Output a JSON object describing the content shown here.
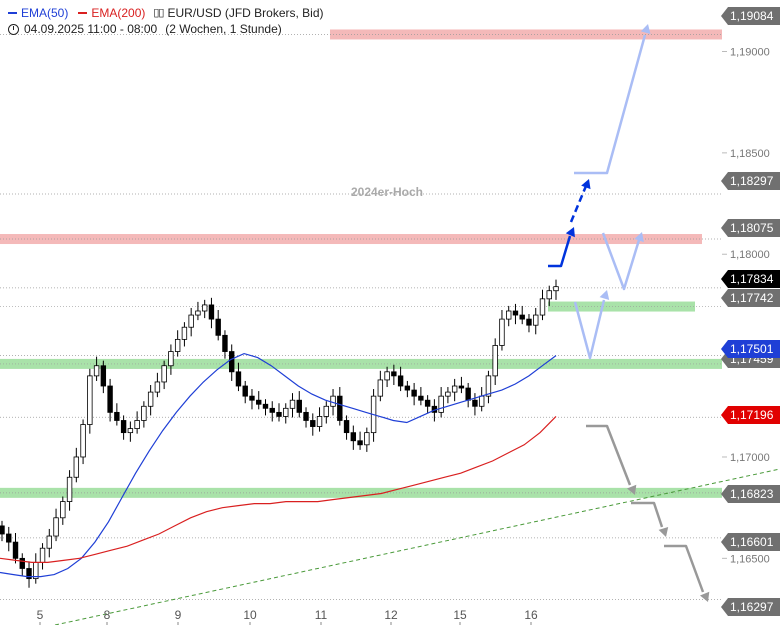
{
  "legend": {
    "ema50_label": "EMA(50)",
    "ema200_label": "EMA(200)",
    "instrument": "EUR/USD (JFD Brokers, Bid)",
    "timeframe": "04.09.2025 11:00 - 08:00",
    "period": "(2 Wochen, 1 Stunde)"
  },
  "colors": {
    "ema50": "#1f3fd6",
    "ema200": "#d92020",
    "resistance_zone": "#f4b9b9",
    "support_zone": "#a9e2a9",
    "projection_up": "#0033dd",
    "projection_light": "#aabdf5",
    "projection_down": "#999999",
    "trendline": "#4a9a3a"
  },
  "chart_data": {
    "type": "candlestick",
    "y_axis_ticks": [
      "1,19000",
      "1,18500",
      "1,18000",
      "1,17000",
      "1,16500"
    ],
    "x_axis_ticks": [
      "5",
      "8",
      "9",
      "10",
      "11",
      "12",
      "15",
      "16"
    ],
    "price_tags": [
      {
        "label": "1,19084",
        "style": "grey"
      },
      {
        "label": "1,18297",
        "style": "grey"
      },
      {
        "label": "1,18075",
        "style": "grey"
      },
      {
        "label": "1,17834",
        "style": "black"
      },
      {
        "label": "1,17742",
        "style": "grey"
      },
      {
        "label": "1,17501",
        "style": "blue"
      },
      {
        "label": "1,17459",
        "style": "grey"
      },
      {
        "label": "1,17196",
        "style": "red"
      },
      {
        "label": "1,16823",
        "style": "grey"
      },
      {
        "label": "1,16601",
        "style": "grey"
      },
      {
        "label": "1,16297",
        "style": "grey"
      }
    ],
    "annotations": [
      "2024er-Hoch"
    ],
    "resistance_zones": [
      1.19084,
      1.18075
    ],
    "support_zones": [
      1.17742,
      1.17459,
      1.16823
    ],
    "ylim": [
      1.1626,
      1.1918
    ],
    "closes": [
      1.1662,
      1.1658,
      1.165,
      1.1645,
      1.164,
      1.1648,
      1.1655,
      1.1661,
      1.167,
      1.1678,
      1.169,
      1.17,
      1.1716,
      1.174,
      1.1745,
      1.1735,
      1.1722,
      1.1718,
      1.1712,
      1.1714,
      1.1718,
      1.1725,
      1.1732,
      1.1737,
      1.1745,
      1.1752,
      1.1758,
      1.1764,
      1.177,
      1.1772,
      1.1775,
      1.1768,
      1.176,
      1.1752,
      1.1742,
      1.1735,
      1.173,
      1.1728,
      1.1726,
      1.1724,
      1.1722,
      1.172,
      1.1724,
      1.1728,
      1.1722,
      1.1718,
      1.1715,
      1.172,
      1.1725,
      1.173,
      1.1718,
      1.1712,
      1.1708,
      1.1706,
      1.1712,
      1.173,
      1.1738,
      1.1742,
      1.174,
      1.1735,
      1.1733,
      1.173,
      1.1728,
      1.1725,
      1.1722,
      1.173,
      1.1732,
      1.1735,
      1.1734,
      1.1728,
      1.1725,
      1.173,
      1.174,
      1.1755,
      1.1768,
      1.1772,
      1.177,
      1.1768,
      1.1765,
      1.177,
      1.1778,
      1.1782,
      1.1784
    ],
    "ema50": [
      1.1643,
      1.1642,
      1.1641,
      1.1641,
      1.1642,
      1.1645,
      1.165,
      1.1658,
      1.1668,
      1.168,
      1.1692,
      1.1703,
      1.1713,
      1.1722,
      1.173,
      1.1737,
      1.1743,
      1.1748,
      1.1751,
      1.1749,
      1.1745,
      1.174,
      1.1735,
      1.1731,
      1.1728,
      1.1726,
      1.1724,
      1.1722,
      1.172,
      1.1718,
      1.1717,
      1.172,
      1.1723,
      1.1725,
      1.1727,
      1.1729,
      1.1731,
      1.1733,
      1.1736,
      1.174,
      1.1745,
      1.175
    ],
    "ema200": [
      1.165,
      1.1649,
      1.1648,
      1.1648,
      1.1649,
      1.165,
      1.1652,
      1.1654,
      1.1656,
      1.1659,
      1.1662,
      1.1666,
      1.167,
      1.1673,
      1.1675,
      1.1676,
      1.1677,
      1.1677,
      1.1678,
      1.1678,
      1.1678,
      1.1679,
      1.168,
      1.1681,
      1.1682,
      1.1684,
      1.1686,
      1.1688,
      1.169,
      1.1692,
      1.1695,
      1.1698,
      1.1702,
      1.1706,
      1.1712,
      1.172
    ]
  }
}
